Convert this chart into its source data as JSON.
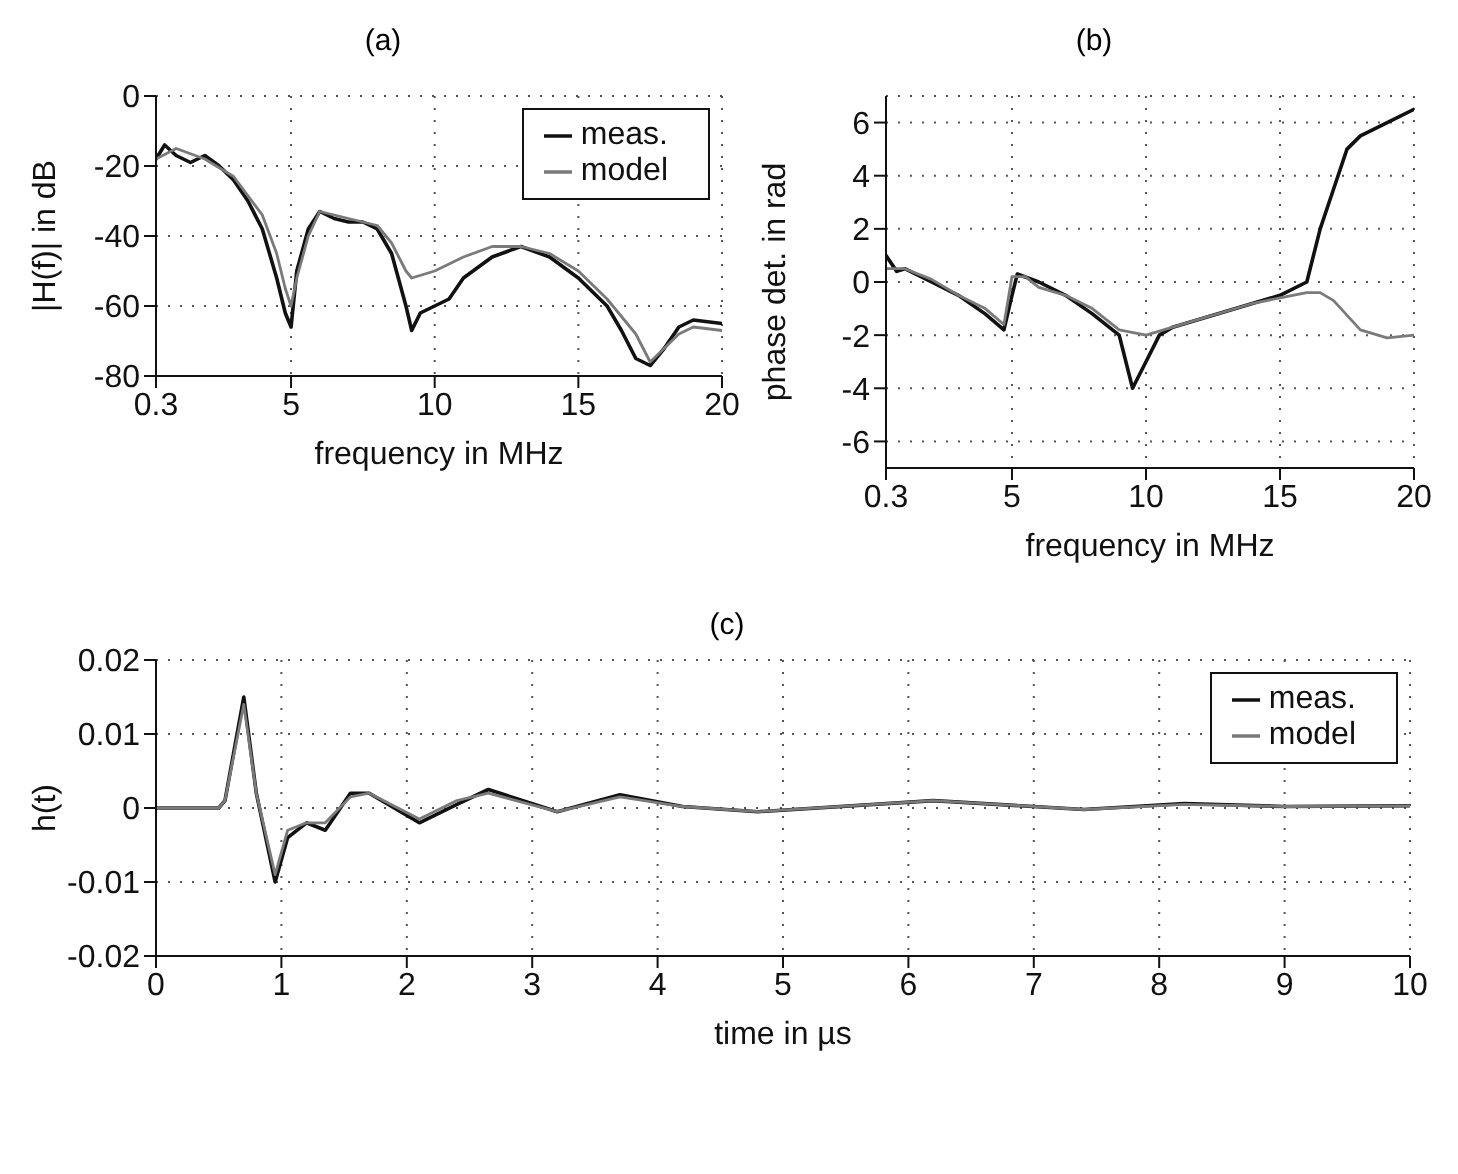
{
  "chart_data": [
    {
      "type": "line",
      "title": "(a)",
      "xlabel": "frequency in MHz",
      "ylabel": "|H(f)| in dB",
      "xlim": [
        0.3,
        20
      ],
      "xticks": [
        0.3,
        5,
        10,
        15,
        20
      ],
      "ylim": [
        -80,
        0
      ],
      "yticks": [
        -80,
        -60,
        -40,
        -20,
        0
      ],
      "grid": true,
      "legend": "top right",
      "series": [
        {
          "name": "meas.",
          "color": "#111111",
          "x": [
            0.3,
            0.6,
            1,
            1.5,
            2,
            2.5,
            3,
            3.5,
            4,
            4.5,
            4.8,
            5,
            5.2,
            5.6,
            6,
            6.5,
            7,
            7.5,
            8,
            8.5,
            9,
            9.2,
            9.5,
            10,
            10.5,
            11,
            12,
            13,
            14,
            15,
            16,
            16.5,
            17,
            17.5,
            18,
            18.5,
            19,
            20
          ],
          "values": [
            -18,
            -14,
            -17,
            -19,
            -17,
            -20,
            -24,
            -30,
            -38,
            -52,
            -62,
            -66,
            -50,
            -38,
            -33,
            -35,
            -36,
            -36,
            -38,
            -45,
            -60,
            -67,
            -62,
            -60,
            -58,
            -52,
            -46,
            -43,
            -46,
            -52,
            -60,
            -67,
            -75,
            -77,
            -72,
            -66,
            -64,
            -65
          ]
        },
        {
          "name": "model",
          "color": "#7a7a7a",
          "x": [
            0.3,
            1,
            2,
            3,
            4,
            4.5,
            4.8,
            5,
            5.2,
            5.6,
            6,
            7,
            8,
            8.5,
            9,
            9.2,
            10,
            11,
            12,
            13,
            14,
            15,
            16,
            17,
            17.5,
            18,
            18.5,
            19,
            20
          ],
          "values": [
            -18,
            -15,
            -18,
            -23,
            -34,
            -45,
            -55,
            -60,
            -52,
            -40,
            -33,
            -35,
            -37,
            -42,
            -50,
            -52,
            -50,
            -46,
            -43,
            -43,
            -45,
            -50,
            -58,
            -68,
            -76,
            -72,
            -68,
            -66,
            -67
          ]
        }
      ]
    },
    {
      "type": "line",
      "title": "(b)",
      "xlabel": "frequency in MHz",
      "ylabel": "phase det. in rad",
      "xlim": [
        0.3,
        20
      ],
      "xticks": [
        0.3,
        5,
        10,
        15,
        20
      ],
      "ylim": [
        -7,
        7
      ],
      "yticks": [
        -6,
        -4,
        -2,
        0,
        2,
        4,
        6
      ],
      "grid": true,
      "series": [
        {
          "color": "#111111",
          "x": [
            0.3,
            0.7,
            1,
            2,
            3,
            4,
            4.7,
            5,
            5.2,
            6,
            7,
            8,
            9,
            9.5,
            10,
            10.5,
            11,
            12,
            13,
            14,
            15,
            16,
            16.5,
            17,
            17.5,
            18,
            19,
            20
          ],
          "values": [
            1,
            0.4,
            0.5,
            0,
            -0.5,
            -1.2,
            -1.8,
            -0.5,
            0.3,
            0,
            -0.5,
            -1.2,
            -2,
            -4,
            -3,
            -2,
            -1.7,
            -1.4,
            -1.1,
            -0.8,
            -0.5,
            0,
            2,
            3.5,
            5,
            5.5,
            6,
            6.5
          ]
        },
        {
          "color": "#7a7a7a",
          "x": [
            0.3,
            1,
            2,
            3,
            4,
            4.7,
            5,
            5.5,
            6,
            7,
            8,
            9,
            10,
            11,
            12,
            13,
            14,
            15,
            16,
            16.5,
            17,
            18,
            19,
            20
          ],
          "values": [
            0.5,
            0.5,
            0.1,
            -0.5,
            -1,
            -1.6,
            0.2,
            0.2,
            -0.2,
            -0.5,
            -1,
            -1.8,
            -2,
            -1.7,
            -1.4,
            -1.1,
            -0.8,
            -0.6,
            -0.4,
            -0.4,
            -0.7,
            -1.8,
            -2.1,
            -2
          ]
        }
      ]
    },
    {
      "type": "line",
      "title": "(c)",
      "xlabel": "time in µs",
      "ylabel": "h(t)",
      "xlim": [
        0,
        10
      ],
      "xticks": [
        0,
        1,
        2,
        3,
        4,
        5,
        6,
        7,
        8,
        9,
        10
      ],
      "ylim": [
        -0.02,
        0.02
      ],
      "yticks": [
        -0.02,
        -0.01,
        0,
        0.01,
        0.02
      ],
      "grid": true,
      "legend": "top right",
      "series": [
        {
          "name": "meas.",
          "color": "#111111",
          "x": [
            0,
            0.5,
            0.55,
            0.7,
            0.8,
            0.95,
            1.05,
            1.2,
            1.35,
            1.55,
            1.7,
            2.1,
            2.4,
            2.65,
            3.2,
            3.7,
            4.2,
            4.8,
            6.2,
            7.4,
            8.2,
            9,
            10
          ],
          "values": [
            0,
            0,
            0.001,
            0.015,
            0.002,
            -0.01,
            -0.004,
            -0.002,
            -0.003,
            0.002,
            0.002,
            -0.002,
            0.0005,
            0.0025,
            -0.0005,
            0.0018,
            0.0002,
            -0.0005,
            0.001,
            -0.0002,
            0.0006,
            0.0002,
            0.0003
          ]
        },
        {
          "name": "model",
          "color": "#7a7a7a",
          "x": [
            0,
            0.5,
            0.55,
            0.7,
            0.8,
            0.95,
            1.05,
            1.2,
            1.35,
            1.55,
            1.7,
            2.1,
            2.4,
            2.65,
            3.2,
            3.7,
            4.2,
            4.8,
            6.2,
            7.4,
            8.2,
            9,
            10
          ],
          "values": [
            0,
            0,
            0.001,
            0.014,
            0.002,
            -0.009,
            -0.003,
            -0.002,
            -0.002,
            0.0015,
            0.002,
            -0.0015,
            0.001,
            0.002,
            -0.0005,
            0.0015,
            0.0002,
            -0.0005,
            0.001,
            -0.0002,
            0.0005,
            0.0002,
            0.0003
          ]
        }
      ]
    }
  ]
}
